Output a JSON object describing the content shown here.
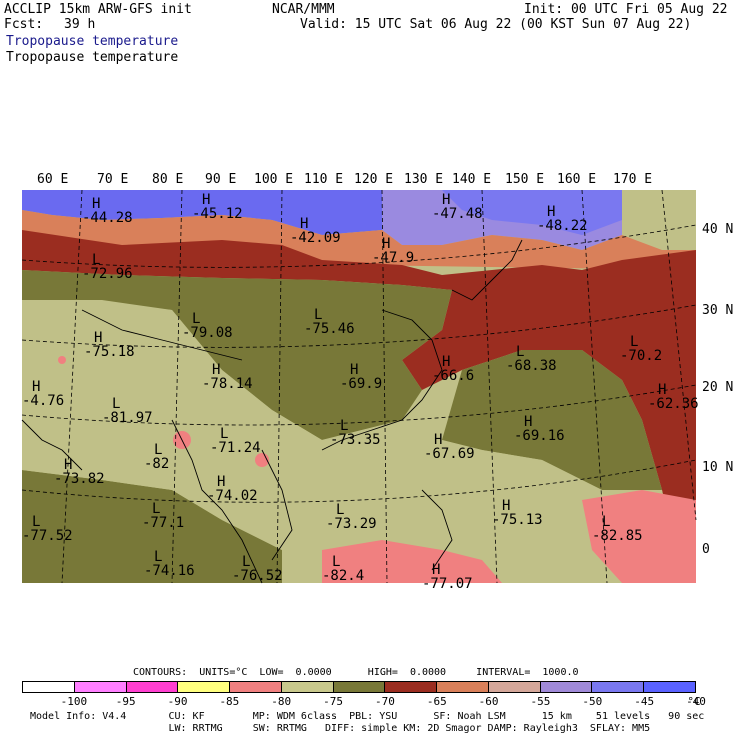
{
  "header": {
    "model": "ACCLIP 15km ARW-GFS init",
    "fcst_label": "Fcst:",
    "fcst_value": "39 h",
    "center": "NCAR/MMM",
    "init": "Init: 00 UTC Fri 05 Aug 22",
    "valid": "Valid: 15 UTC Sat 06 Aug 22 (00 KST Sun 07 Aug 22)",
    "field_title_1": "Tropopause temperature",
    "field_title_2": "Tropopause temperature"
  },
  "map": {
    "lon_labels": [
      "60 E",
      "70 E",
      "80 E",
      "90 E",
      "100 E",
      "110 E",
      "120 E",
      "130 E",
      "140 E",
      "150 E",
      "160 E",
      "170 E"
    ],
    "lat_labels": [
      "40 N",
      "30 N",
      "20 N",
      "10 N",
      "0"
    ],
    "colors": {
      "lt_-95": "#ff7fff",
      "-95_-90": "#ff3fd0",
      "-90_-85": "#ffff7f",
      "-85_-80": "#f08080",
      "-80_-75": "#c8c88c",
      "-75_-70": "#787838",
      "-70_-65": "#9b2d20",
      "-65_-60": "#d9805a",
      "-60_-55": "#d4a79a",
      "-55_-50": "#a08ad8",
      "-50_-45": "#7a78f0",
      "-45_-40": "#5a62ff",
      "land": "#c0c088",
      "coast": "#000000"
    },
    "markers": [
      {
        "type": "H",
        "value": "-44.28"
      },
      {
        "type": "H",
        "value": "-45.12"
      },
      {
        "type": "H",
        "value": "-42.09"
      },
      {
        "type": "H",
        "value": "-47.48"
      },
      {
        "type": "H",
        "value": "-48.22"
      },
      {
        "type": "H",
        "value": "-47.9"
      },
      {
        "type": "L",
        "value": "-72.96"
      },
      {
        "type": "L",
        "value": "-79.08"
      },
      {
        "type": "L",
        "value": "-75.46"
      },
      {
        "type": "H",
        "value": "-75.18"
      },
      {
        "type": "H",
        "value": "-78.14"
      },
      {
        "type": "L",
        "value": "-81.97"
      },
      {
        "type": "H",
        "value": "-69.9"
      },
      {
        "type": "H",
        "value": "-66.6"
      },
      {
        "type": "L",
        "value": "-68.38"
      },
      {
        "type": "L",
        "value": "-70.2"
      },
      {
        "type": "H",
        "value": "-62.36"
      },
      {
        "type": "L",
        "value": "-71.24"
      },
      {
        "type": "L",
        "value": "-73.35"
      },
      {
        "type": "H",
        "value": "-69.16"
      },
      {
        "type": "H",
        "value": "-67.69"
      },
      {
        "type": "L",
        "value": "-82"
      },
      {
        "type": "H",
        "value": "-73.82"
      },
      {
        "type": "H",
        "value": "-74.02"
      },
      {
        "type": "L",
        "value": "-77.1"
      },
      {
        "type": "L",
        "value": "-77.52"
      },
      {
        "type": "L",
        "value": "-73.29"
      },
      {
        "type": "H",
        "value": "-75.13"
      },
      {
        "type": "L",
        "value": "-82.85"
      },
      {
        "type": "L",
        "value": "-74.16"
      },
      {
        "type": "L",
        "value": "-76.52"
      },
      {
        "type": "L",
        "value": "-82.4"
      },
      {
        "type": "H",
        "value": "-77.07"
      },
      {
        "type": "H",
        "value": "-4.76"
      }
    ]
  },
  "legend": {
    "contours_line": "CONTOURS:  UNITS=°C  LOW=  0.0000      HIGH=  0.0000     INTERVAL=  1000.0",
    "bins": [
      "#ffffff",
      "#ff7fff",
      "#ff3fd0",
      "#ffff7f",
      "#f08080",
      "#c8c88c",
      "#787838",
      "#9b2d20",
      "#d9805a",
      "#d4a79a",
      "#a08ad8",
      "#7a78f0",
      "#5a62ff"
    ],
    "tick_labels": [
      "-100",
      "-95",
      "-90",
      "-85",
      "-80",
      "-75",
      "-70",
      "-65",
      "-60",
      "-55",
      "-50",
      "-45",
      "-40"
    ],
    "unit": "°C"
  },
  "footer": {
    "line1": "Model Info: V4.4       CU: KF        MP: WDM 6class  PBL: YSU      SF: Noah LSM      15 km    51 levels   90 sec",
    "line2": "                       LW: RRTMG     SW: RRTMG   DIFF: simple KM: 2D Smagor DAMP: Rayleigh3  SFLAY: MM5"
  }
}
